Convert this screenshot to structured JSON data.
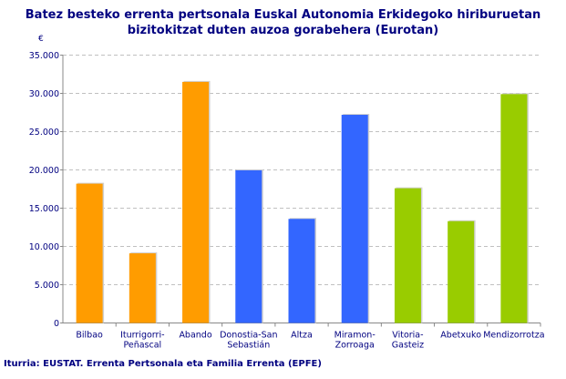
{
  "chart_data": {
    "type": "bar",
    "title": "Batez besteko errenta pertsonala Euskal Autonomia Erkidegoko hiriburuetan bizitokitzat duten auzoa gorabehera (Eurotan)",
    "title_lines": [
      "Batez besteko errenta pertsonala Euskal Autonomia Erkidegoko hiriburuetan",
      "bizitokitzat duten auzoa gorabehera (Eurotan)"
    ],
    "ylabel": "€",
    "ylim": [
      0,
      35000
    ],
    "yticks": [
      "0",
      "5.000",
      "10.000",
      "15.000",
      "20.000",
      "25.000",
      "30.000",
      "35.000"
    ],
    "grid": true,
    "categories": [
      [
        "Bilbao"
      ],
      [
        "Iturrigorri-",
        "Peñascal"
      ],
      [
        "Abando"
      ],
      [
        "Donostia-San",
        "Sebastián"
      ],
      [
        "Altza"
      ],
      [
        "Miramon-",
        "Zorroaga"
      ],
      [
        "Vitoria-",
        "Gasteiz"
      ],
      [
        "Abetxuko"
      ],
      [
        "Mendizorrotza"
      ]
    ],
    "values": [
      18200,
      9100,
      31500,
      19950,
      13600,
      27200,
      17600,
      13300,
      29900
    ],
    "colors": [
      "#FF9C00",
      "#FF9C00",
      "#FF9C00",
      "#3366FF",
      "#3366FF",
      "#3366FF",
      "#99CC00",
      "#99CC00",
      "#99CC00"
    ]
  },
  "source": "Iturria: EUSTAT. Errenta Pertsonala eta Familia Errenta (EPFE)"
}
